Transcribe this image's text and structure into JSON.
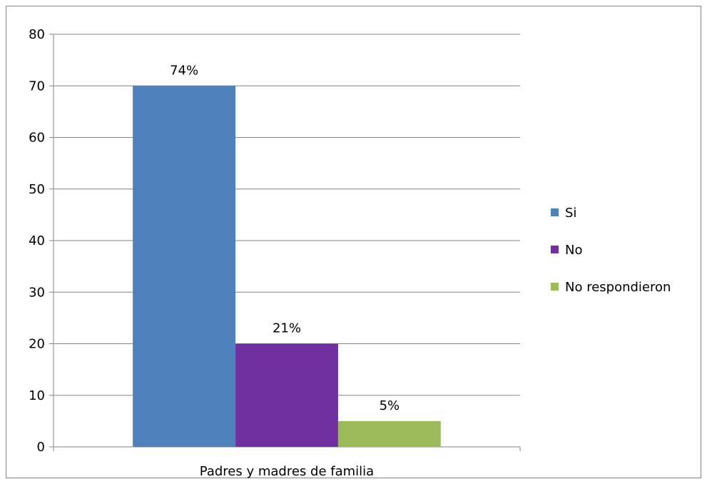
{
  "chart_data": {
    "type": "bar",
    "categories": [
      "Padres y madres de familia"
    ],
    "series": [
      {
        "name": "Si",
        "values": [
          70
        ],
        "data_label": "74%",
        "color": "#4F81BD"
      },
      {
        "name": "No",
        "values": [
          20
        ],
        "data_label": "21%",
        "color": "#7030A0"
      },
      {
        "name": "No respondieron",
        "values": [
          5
        ],
        "data_label": "5%",
        "color": "#9BBB59"
      }
    ],
    "yticks": [
      "0",
      "10",
      "20",
      "30",
      "40",
      "50",
      "60",
      "70",
      "80"
    ],
    "ylim": [
      0,
      80
    ],
    "grid": true,
    "legend_position": "right"
  }
}
